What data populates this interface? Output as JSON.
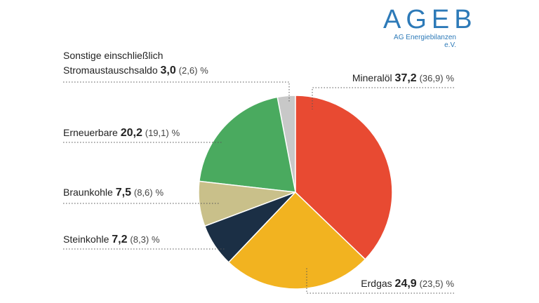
{
  "chart_data": {
    "type": "pie",
    "logo": "AGEB",
    "logo_subtitle": "AG Energiebilanzen e.V.",
    "categories": [
      "Mineralöl",
      "Erdgas",
      "Steinkohle",
      "Braunkohle",
      "Erneuerbare",
      "Sonstige einschließlich Stromaustauschsaldo"
    ],
    "values": [
      37.2,
      24.9,
      7.2,
      7.5,
      20.2,
      3.0
    ],
    "value_labels": [
      "37,2",
      "24,9",
      "7,2",
      "7,5",
      "20,2",
      "3,0"
    ],
    "previous_values": [
      36.9,
      23.5,
      8.3,
      8.6,
      19.1,
      2.6
    ],
    "previous_value_labels": [
      "(36,9)",
      "(23,5)",
      "(8,3)",
      "(8,6)",
      "(19,1)",
      "(2,6)"
    ],
    "unit": "%",
    "colors": [
      "#e84a32",
      "#f2b320",
      "#1b2f45",
      "#c9c08a",
      "#4aaa5f",
      "#c8c8c8"
    ]
  }
}
